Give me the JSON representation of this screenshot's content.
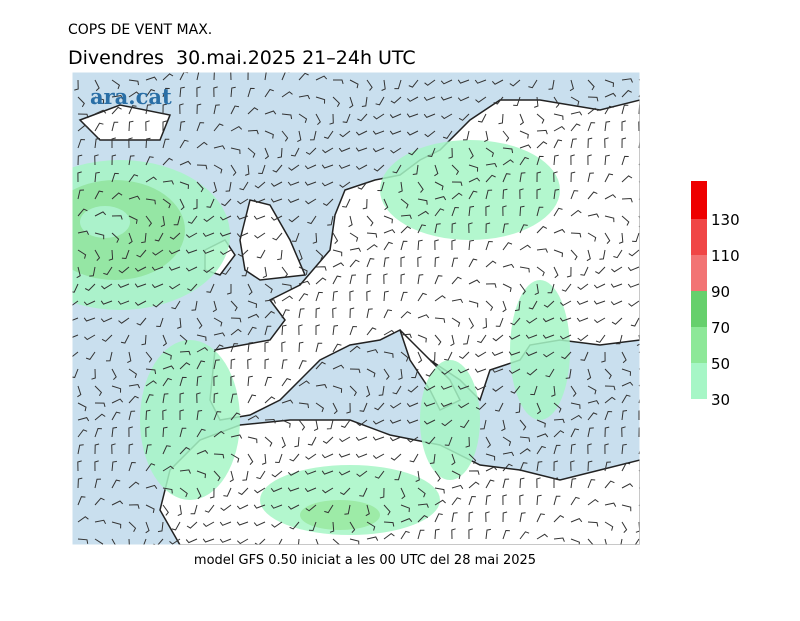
{
  "header": {
    "title": "COPS DE VENT MAX.",
    "subtitle": "Divendres  30.mai.2025 21–24h UTC"
  },
  "logo": "ara.cat",
  "footer": "model GFS 0.50 iniciat a les 00 UTC del 28 mai 2025",
  "colorbar": {
    "levels": [
      30,
      50,
      70,
      90,
      110,
      130
    ],
    "colors": [
      "#a6f6c6",
      "#8de898",
      "#66d06c",
      "#f27474",
      "#f04646",
      "#ee0000"
    ]
  }
}
